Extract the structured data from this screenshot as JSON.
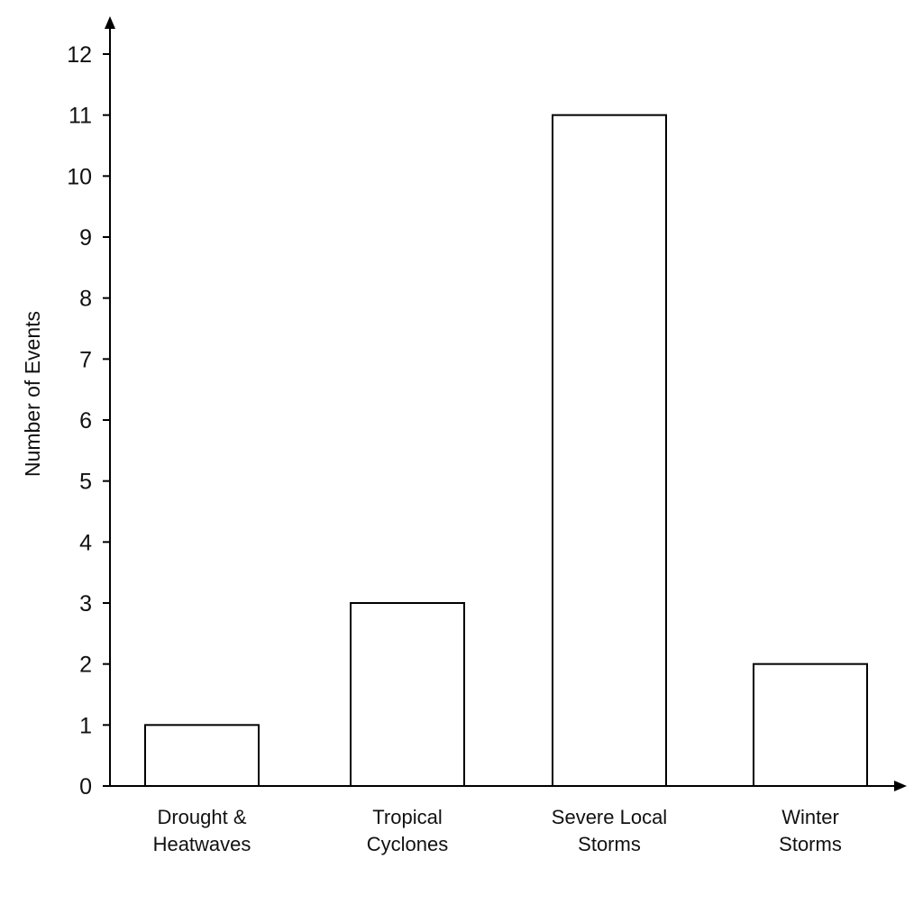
{
  "chart_data": {
    "type": "bar",
    "title": "",
    "xlabel": "",
    "ylabel": "Number of Events",
    "categories": [
      [
        "Drought &",
        "Heatwaves"
      ],
      [
        "Tropical",
        "Cyclones"
      ],
      [
        "Severe Local",
        "Storms"
      ],
      [
        "Winter",
        "Storms"
      ]
    ],
    "values": [
      1,
      3,
      11,
      2
    ],
    "ylim": [
      0,
      12
    ],
    "yticks": [
      0,
      1,
      2,
      3,
      4,
      5,
      6,
      7,
      8,
      9,
      10,
      11,
      12
    ],
    "grid": false,
    "legend": "none",
    "bar_fill": "#ffffff",
    "bar_stroke": "#000000",
    "axis_color": "#000000"
  }
}
